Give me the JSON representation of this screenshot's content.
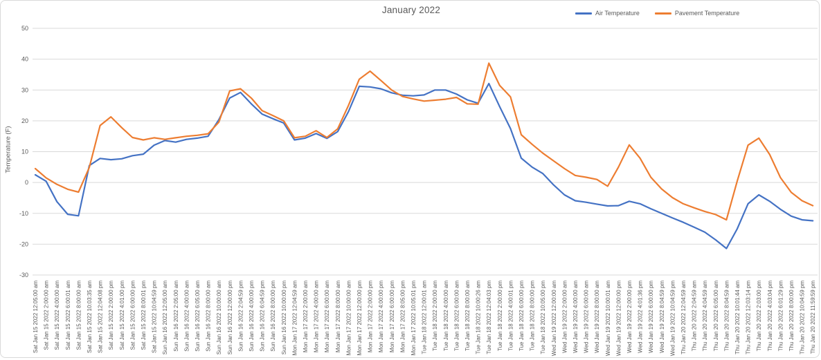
{
  "chart": {
    "title": "January 2022",
    "y_axis_title": "Temperature (F)",
    "colors": {
      "air": "#4472C4",
      "pavement": "#ED7D31",
      "grid": "#D9D9D9",
      "text": "#595959"
    }
  },
  "chart_data": {
    "type": "line",
    "title": "January 2022",
    "xlabel": "",
    "ylabel": "Temperature (F)",
    "ylim": [
      -30,
      50
    ],
    "y_ticks": [
      50,
      40,
      30,
      20,
      10,
      0,
      -10,
      -20,
      -30
    ],
    "grid": true,
    "legend_position": "top-right",
    "categories": [
      "Sat Jan 15 2022 12:05:00 am",
      "Sat Jan 15 2022 2:00:00 am",
      "Sat Jan 15 2022 4:00:00 am",
      "Sat Jan 15 2022 6:00:01 am",
      "Sat Jan 15 2022 8:00:00 am",
      "Sat Jan 15 2022 10:03:35 am",
      "Sat Jan 15 2022 12:04:08 pm",
      "Sat Jan 15 2022 2:00:00 pm",
      "Sat Jan 15 2022 4:01:00 pm",
      "Sat Jan 15 2022 6:00:00 pm",
      "Sat Jan 15 2022 8:00:01 pm",
      "Sat Jan 15 2022 10:04:59 pm",
      "Sun Jan 16 2022 12:05:00 am",
      "Sun Jan 16 2022 2:05:00 am",
      "Sun Jan 16 2022 4:00:00 am",
      "Sun Jan 16 2022 6:05:00 am",
      "Sun Jan 16 2022 8:00:00 am",
      "Sun Jan 16 2022 10:00:00 am",
      "Sun Jan 16 2022 12:00:00 pm",
      "Sun Jan 16 2022 2:04:59 pm",
      "Sun Jan 16 2022 4:00:00 pm",
      "Sun Jan 16 2022 6:04:59 pm",
      "Sun Jan 16 2022 8:00:00 pm",
      "Sun Jan 16 2022 10:00:00 pm",
      "Mon Jan 17 2022 12:04:59 am",
      "Mon Jan 17 2022 2:00:00 am",
      "Mon Jan 17 2022 4:00:00 am",
      "Mon Jan 17 2022 6:00:00 am",
      "Mon Jan 17 2022 8:00:00 am",
      "Mon Jan 17 2022 10:00:00 am",
      "Mon Jan 17 2022 12:00:00 pm",
      "Mon Jan 17 2022 2:00:00 pm",
      "Mon Jan 17 2022 4:00:00 pm",
      "Mon Jan 17 2022 6:00:00 pm",
      "Mon Jan 17 2022 8:05:00 pm",
      "Mon Jan 17 2022 10:05:01 pm",
      "Tue Jan 18 2022 12:00:01 am",
      "Tue Jan 18 2022 2:00:00 am",
      "Tue Jan 18 2022 4:00:00 am",
      "Tue Jan 18 2022 6:00:00 am",
      "Tue Jan 18 2022 8:00:00 am",
      "Tue Jan 18 2022 10:00:26 am",
      "Tue Jan 18 2022 12:04:03 pm",
      "Tue Jan 18 2022 2:00:00 pm",
      "Tue Jan 18 2022 4:00:01 pm",
      "Tue Jan 18 2022 6:00:00 pm",
      "Tue Jan 18 2022 8:00:00 pm",
      "Tue Jan 18 2022 10:05:00 pm",
      "Wed Jan 19 2022 12:00:00 am",
      "Wed Jan 19 2022 2:00:00 am",
      "Wed Jan 19 2022 4:00:00 am",
      "Wed Jan 19 2022 6:00:00 am",
      "Wed Jan 19 2022 8:00:00 am",
      "Wed Jan 19 2022 10:00:01 am",
      "Wed Jan 19 2022 12:00:00 pm",
      "Wed Jan 19 2022 2:00:00 pm",
      "Wed Jan 19 2022 4:01:36 pm",
      "Wed Jan 19 2022 6:00:00 pm",
      "Wed Jan 19 2022 8:04:59 pm",
      "Wed Jan 19 2022 10:04:59 pm",
      "Thu Jan 20 2022 12:04:59 am",
      "Thu Jan 20 2022 2:04:59 am",
      "Thu Jan 20 2022 4:04:59 am",
      "Thu Jan 20 2022 6:05:00 am",
      "Thu Jan 20 2022 8:04:59 am",
      "Thu Jan 20 2022 10:01:44 am",
      "Thu Jan 20 2022 12:03:14 pm",
      "Thu Jan 20 2022 2:03:00 pm",
      "Thu Jan 20 2022 4:03:04 pm",
      "Thu Jan 20 2022 6:01:29 pm",
      "Thu Jan 20 2022 8:00:00 pm",
      "Thu Jan 20 2022 10:04:59 pm",
      "Thu Jan 20 2022 11:59:59 pm"
    ],
    "series": [
      {
        "name": "Air Temperature",
        "color": "#4472C4",
        "values": [
          2.5,
          0.4,
          -6.2,
          -10.3,
          -10.8,
          5.5,
          7.8,
          7.4,
          7.7,
          8.7,
          9.2,
          12.1,
          13.6,
          13.1,
          14.0,
          14.4,
          15.0,
          20.4,
          27.4,
          29.2,
          25.5,
          22.2,
          20.7,
          19.3,
          13.8,
          14.4,
          15.9,
          14.3,
          16.5,
          23.0,
          31.2,
          31.0,
          30.4,
          29.1,
          28.3,
          28.1,
          28.4,
          30.0,
          30.0,
          28.7,
          26.8,
          25.7,
          32.1,
          24.6,
          17.5,
          7.9,
          5.0,
          2.9,
          -0.8,
          -4.0,
          -5.9,
          -6.4,
          -7.0,
          -7.6,
          -7.5,
          -6.1,
          -6.9,
          -8.5,
          -10.0,
          -11.5,
          -12.9,
          -14.5,
          -16.1,
          -18.6,
          -21.4,
          -15.0,
          -6.9,
          -4.0,
          -6.1,
          -8.7,
          -10.9,
          -12.1,
          -12.4
        ]
      },
      {
        "name": "Pavement Temperature",
        "color": "#ED7D31",
        "values": [
          4.5,
          1.5,
          -0.6,
          -2.2,
          -3.1,
          4.9,
          18.5,
          21.3,
          17.8,
          14.6,
          13.8,
          14.5,
          14.0,
          14.5,
          15.0,
          15.3,
          15.8,
          19.6,
          29.7,
          30.4,
          27.4,
          23.3,
          21.7,
          20.0,
          14.5,
          15.0,
          16.8,
          14.6,
          17.4,
          25.0,
          33.5,
          36.1,
          33.1,
          30.0,
          27.9,
          27.1,
          26.4,
          26.7,
          27.0,
          27.6,
          25.5,
          25.4,
          38.7,
          31.5,
          27.8,
          15.5,
          12.4,
          9.5,
          7.0,
          4.5,
          2.3,
          1.7,
          1.0,
          -1.2,
          5.0,
          12.2,
          7.9,
          1.7,
          -2.1,
          -4.9,
          -6.9,
          -8.2,
          -9.4,
          -10.4,
          -12.1,
          0.5,
          12.1,
          14.4,
          9.1,
          1.6,
          -3.2,
          -5.9,
          -7.5
        ]
      }
    ]
  }
}
